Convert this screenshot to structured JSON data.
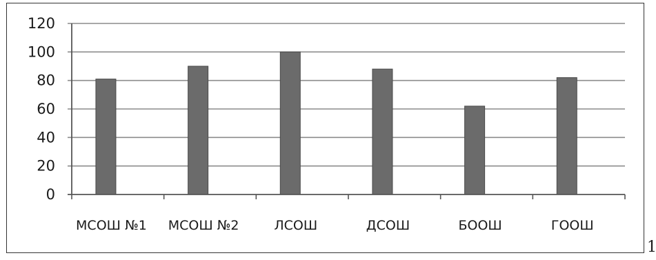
{
  "chart_data": {
    "type": "bar",
    "categories": [
      "МСОШ №1",
      "МСОШ №2",
      "ЛСОШ",
      "ДСОШ",
      "БООШ",
      "ГООШ"
    ],
    "values": [
      81,
      90,
      100,
      88,
      62,
      82
    ],
    "title": "",
    "xlabel": "",
    "ylabel": "",
    "ylim": [
      0,
      120
    ],
    "yticks": [
      0,
      20,
      40,
      60,
      80,
      100,
      120
    ],
    "grid": true,
    "legend": false,
    "bar_color": "#6b6b6b",
    "grid_color": "#8c8c8c"
  },
  "page_number": "1"
}
